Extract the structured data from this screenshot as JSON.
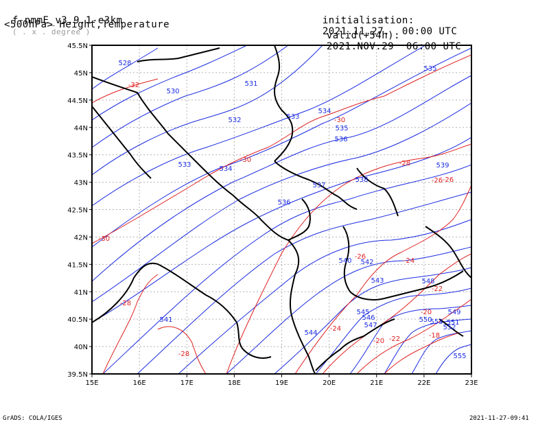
{
  "header": {
    "model": "f-nmmE_v3.9.1-e3km",
    "model_note": "( . x . degree )",
    "field": "<500hPa> Height,Temperature",
    "init_label": "initialisation:",
    "init_value": "2021.11.27.  00:00 UTC",
    "valid_label": "valid(+54h):",
    "valid_value": "2021.NOV.29  06:00 UTC"
  },
  "footer": {
    "left": "GrADS: COLA/IGES",
    "right": "2021-11-27-09:41"
  },
  "map": {
    "lon_ticks": [
      "15E",
      "16E",
      "17E",
      "18E",
      "19E",
      "20E",
      "21E",
      "22E",
      "23E"
    ],
    "lat_ticks": [
      "39.5N",
      "40N",
      "40.5N",
      "41N",
      "41.5N",
      "42N",
      "42.5N",
      "43N",
      "43.5N",
      "44N",
      "44.5N",
      "45N",
      "45.5N"
    ],
    "colors": {
      "height": "#1a2be0",
      "temperature": "#e02020",
      "border": "#000000",
      "grid": "#b0b0b0"
    },
    "height_labels": [
      "528",
      "530",
      "531",
      "532",
      "533",
      "533",
      "534",
      "534",
      "535",
      "535",
      "536",
      "536",
      "537",
      "538",
      "539",
      "540",
      "541",
      "542",
      "543",
      "544",
      "545",
      "546",
      "547",
      "548",
      "549",
      "550",
      "551",
      "552",
      "553",
      "555"
    ],
    "temp_labels": [
      "-32",
      "-30",
      "-30",
      "-30",
      "-28",
      "-28",
      "-26",
      "-26",
      "-24",
      "-24",
      "-22",
      "-22",
      "-20",
      "-20",
      "-18",
      "-28",
      "-26"
    ]
  }
}
